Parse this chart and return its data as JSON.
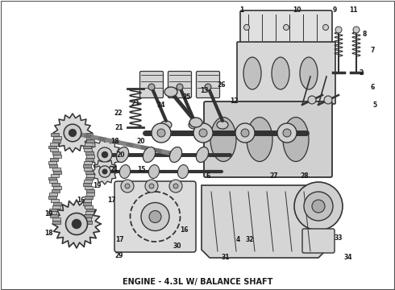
{
  "title": "ENGINE - 4.3L W/ BALANCE SHAFT",
  "title_fontsize": 7,
  "title_fontweight": "bold",
  "background_color": "#ffffff",
  "border_color": "#000000",
  "text_color": "#1a1a1a",
  "diagram_color": "#333333"
}
